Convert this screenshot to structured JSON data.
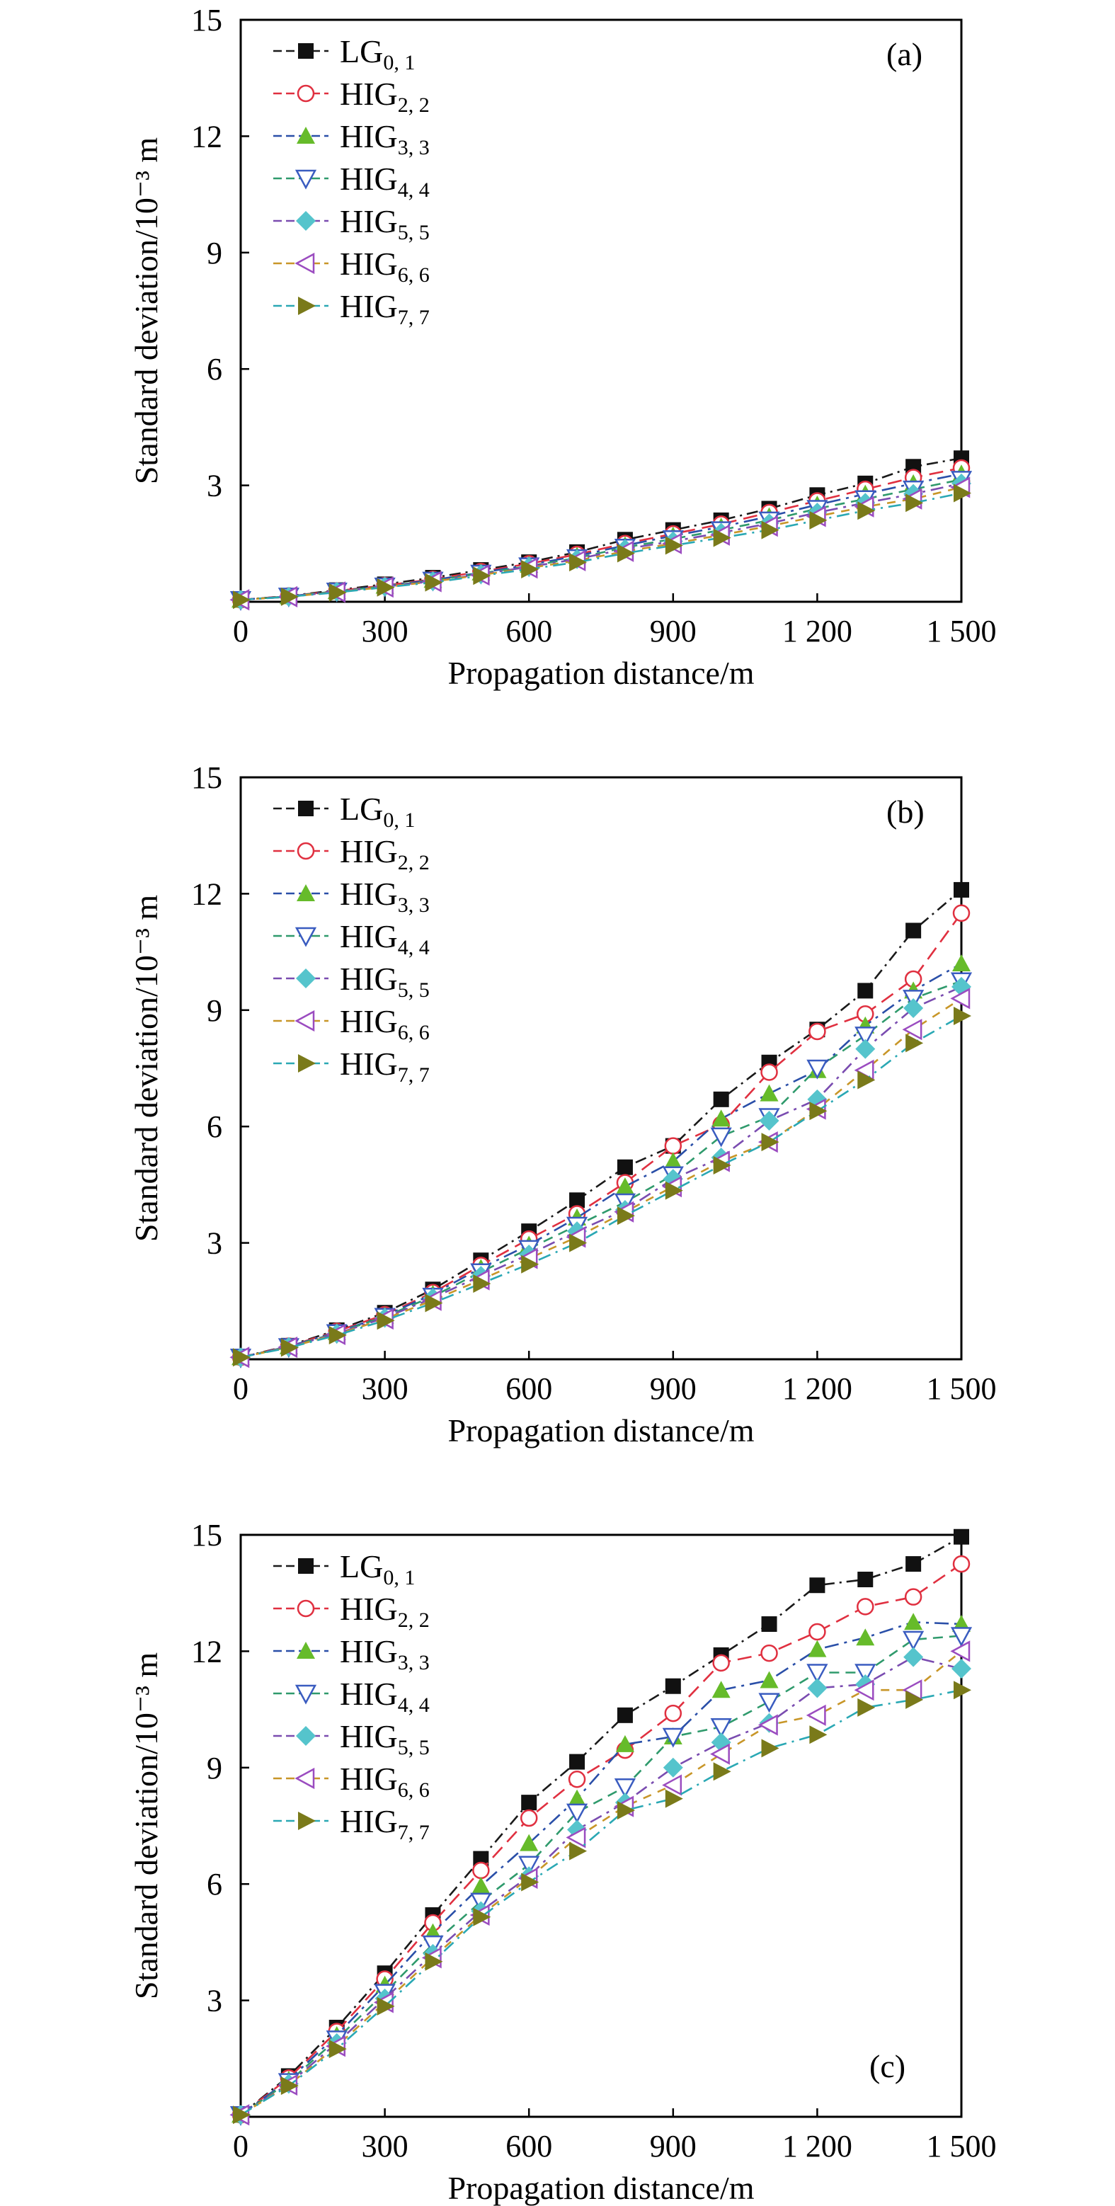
{
  "chart_data": [
    {
      "type": "line",
      "panel_label": "(a)",
      "x": [
        0,
        100,
        200,
        300,
        400,
        500,
        600,
        700,
        800,
        900,
        1000,
        1100,
        1200,
        1300,
        1400,
        1500
      ],
      "xlabel": "Propagation distance/m",
      "ylabel": "Standard deviation/10⁻³ m",
      "xlim": [
        0,
        1500
      ],
      "ylim": [
        0,
        15
      ],
      "xticks": [
        "0",
        "300",
        "600",
        "900",
        "1 200",
        "1 500"
      ],
      "yticks": [
        "3",
        "6",
        "9",
        "12",
        "15"
      ],
      "grid": false,
      "legend_placement": "top-left",
      "series": [
        {
          "base": "LG",
          "sub": "0, 1",
          "values": [
            0.05,
            0.15,
            0.3,
            0.45,
            0.62,
            0.82,
            1.02,
            1.28,
            1.6,
            1.85,
            2.1,
            2.4,
            2.75,
            3.05,
            3.48,
            3.7
          ]
        },
        {
          "base": "HIG",
          "sub": "2, 2",
          "values": [
            0.05,
            0.15,
            0.28,
            0.42,
            0.58,
            0.78,
            0.98,
            1.22,
            1.5,
            1.75,
            2.0,
            2.3,
            2.6,
            2.9,
            3.2,
            3.45
          ]
        },
        {
          "base": "HIG",
          "sub": "3, 3",
          "values": [
            0.05,
            0.14,
            0.27,
            0.41,
            0.56,
            0.75,
            0.95,
            1.18,
            1.45,
            1.7,
            1.93,
            2.2,
            2.5,
            2.78,
            3.05,
            3.3
          ]
        },
        {
          "base": "HIG",
          "sub": "4, 4",
          "values": [
            0.05,
            0.14,
            0.27,
            0.4,
            0.55,
            0.73,
            0.92,
            1.13,
            1.4,
            1.62,
            1.85,
            2.1,
            2.4,
            2.65,
            2.9,
            3.15
          ]
        },
        {
          "base": "HIG",
          "sub": "5, 5",
          "values": [
            0.05,
            0.13,
            0.26,
            0.39,
            0.53,
            0.71,
            0.9,
            1.1,
            1.36,
            1.56,
            1.78,
            2.02,
            2.3,
            2.55,
            2.78,
            3.05
          ]
        },
        {
          "base": "HIG",
          "sub": "6, 6",
          "values": [
            0.05,
            0.13,
            0.25,
            0.38,
            0.52,
            0.69,
            0.87,
            1.06,
            1.3,
            1.5,
            1.72,
            1.95,
            2.2,
            2.45,
            2.65,
            2.95
          ]
        },
        {
          "base": "HIG",
          "sub": "7, 7",
          "values": [
            0.05,
            0.13,
            0.24,
            0.37,
            0.5,
            0.67,
            0.84,
            1.02,
            1.25,
            1.45,
            1.65,
            1.85,
            2.1,
            2.35,
            2.55,
            2.8
          ]
        }
      ]
    },
    {
      "type": "line",
      "panel_label": "(b)",
      "x": [
        0,
        100,
        200,
        300,
        400,
        500,
        600,
        700,
        800,
        900,
        1000,
        1100,
        1200,
        1300,
        1400,
        1500
      ],
      "xlabel": "Propagation distance/m",
      "ylabel": "Standard deviation/10⁻³ m",
      "xlim": [
        0,
        1500
      ],
      "ylim": [
        0,
        15
      ],
      "xticks": [
        "0",
        "300",
        "600",
        "900",
        "1 200",
        "1 500"
      ],
      "yticks": [
        "3",
        "6",
        "9",
        "12",
        "15"
      ],
      "grid": false,
      "legend_placement": "top-left",
      "series": [
        {
          "base": "LG",
          "sub": "0, 1",
          "values": [
            0.05,
            0.35,
            0.75,
            1.2,
            1.8,
            2.55,
            3.3,
            4.1,
            4.95,
            5.5,
            6.7,
            7.65,
            8.5,
            9.5,
            11.05,
            12.1
          ]
        },
        {
          "base": "HIG",
          "sub": "2, 2",
          "values": [
            0.05,
            0.34,
            0.72,
            1.15,
            1.72,
            2.42,
            3.1,
            3.75,
            4.55,
            5.5,
            6.05,
            7.4,
            8.45,
            8.9,
            9.8,
            11.5
          ]
        },
        {
          "base": "HIG",
          "sub": "3, 3",
          "values": [
            0.05,
            0.33,
            0.7,
            1.12,
            1.68,
            2.35,
            2.95,
            3.65,
            4.45,
            5.1,
            6.2,
            6.85,
            7.45,
            8.6,
            9.5,
            10.2
          ]
        },
        {
          "base": "HIG",
          "sub": "4, 4",
          "values": [
            0.05,
            0.32,
            0.68,
            1.1,
            1.62,
            2.25,
            2.85,
            3.45,
            4.05,
            4.75,
            5.75,
            6.25,
            7.5,
            8.35,
            9.3,
            9.75
          ]
        },
        {
          "base": "HIG",
          "sub": "5, 5",
          "values": [
            0.05,
            0.32,
            0.66,
            1.07,
            1.58,
            2.15,
            2.7,
            3.3,
            3.85,
            4.65,
            5.2,
            6.15,
            6.7,
            8.0,
            9.05,
            9.6
          ]
        },
        {
          "base": "HIG",
          "sub": "6, 6",
          "values": [
            0.05,
            0.31,
            0.64,
            1.04,
            1.52,
            2.05,
            2.6,
            3.15,
            3.8,
            4.45,
            5.1,
            5.6,
            6.45,
            7.45,
            8.5,
            9.3
          ]
        },
        {
          "base": "HIG",
          "sub": "7, 7",
          "values": [
            0.05,
            0.3,
            0.62,
            1.0,
            1.45,
            1.95,
            2.45,
            3.0,
            3.7,
            4.35,
            5.0,
            5.6,
            6.4,
            7.2,
            8.15,
            8.85
          ]
        }
      ]
    },
    {
      "type": "line",
      "panel_label": "(c)",
      "x": [
        0,
        100,
        200,
        300,
        400,
        500,
        600,
        700,
        800,
        900,
        1000,
        1100,
        1200,
        1300,
        1400,
        1500
      ],
      "xlabel": "Propagation distance/m",
      "ylabel": "Standard deviation/10⁻³ m",
      "xlim": [
        0,
        1500
      ],
      "ylim": [
        0,
        15
      ],
      "xticks": [
        "0",
        "300",
        "600",
        "900",
        "1 200",
        "1 500"
      ],
      "yticks": [
        "3",
        "6",
        "9",
        "12",
        "15"
      ],
      "grid": false,
      "legend_placement": "top-left",
      "series": [
        {
          "base": "LG",
          "sub": "0, 1",
          "values": [
            0.05,
            1.05,
            2.3,
            3.7,
            5.2,
            6.65,
            8.1,
            9.15,
            10.35,
            11.1,
            11.9,
            12.7,
            13.7,
            13.85,
            14.25,
            14.95
          ]
        },
        {
          "base": "HIG",
          "sub": "2, 2",
          "values": [
            0.05,
            1.0,
            2.2,
            3.55,
            5.0,
            6.35,
            7.7,
            8.7,
            9.45,
            10.4,
            11.7,
            11.95,
            12.5,
            13.15,
            13.4,
            14.25
          ]
        },
        {
          "base": "HIG",
          "sub": "3, 3",
          "values": [
            0.05,
            0.95,
            2.1,
            3.4,
            4.75,
            5.95,
            7.05,
            8.2,
            9.6,
            9.8,
            11.0,
            11.25,
            12.05,
            12.35,
            12.75,
            12.7
          ]
        },
        {
          "base": "HIG",
          "sub": "4, 4",
          "values": [
            0.05,
            0.9,
            2.0,
            3.2,
            4.45,
            5.55,
            6.5,
            7.85,
            8.5,
            9.8,
            10.05,
            10.7,
            11.45,
            11.45,
            12.3,
            12.4
          ]
        },
        {
          "base": "HIG",
          "sub": "5, 5",
          "values": [
            0.05,
            0.85,
            1.9,
            3.05,
            4.2,
            5.3,
            6.2,
            7.4,
            8.1,
            9.0,
            9.65,
            10.15,
            11.05,
            11.15,
            11.85,
            11.55
          ]
        },
        {
          "base": "HIG",
          "sub": "6, 6",
          "values": [
            0.05,
            0.82,
            1.82,
            2.95,
            4.1,
            5.2,
            6.15,
            7.2,
            8.0,
            8.55,
            9.35,
            10.1,
            10.35,
            11.0,
            11.0,
            12.0
          ]
        },
        {
          "base": "HIG",
          "sub": "7, 7",
          "values": [
            0.05,
            0.8,
            1.75,
            2.85,
            4.0,
            5.15,
            6.05,
            6.85,
            7.9,
            8.2,
            8.9,
            9.5,
            9.85,
            10.55,
            10.75,
            11.0
          ]
        }
      ]
    }
  ],
  "style": {
    "series_colors": [
      "#1a1a1a",
      "#e03040",
      "#2a4fa8",
      "#2f9a6c",
      "#7a4cb0",
      "#c89628",
      "#2aa8b4"
    ],
    "marker_colors": [
      "#111111",
      "#e03040",
      "#66bb2a",
      "#3a5cc0",
      "#55c4cc",
      "#9b4cc0",
      "#7a7a1a"
    ],
    "markers": [
      "square",
      "circle-open",
      "triangle-up",
      "triangle-down-open",
      "diamond",
      "triangle-left-open",
      "triangle-right"
    ]
  }
}
